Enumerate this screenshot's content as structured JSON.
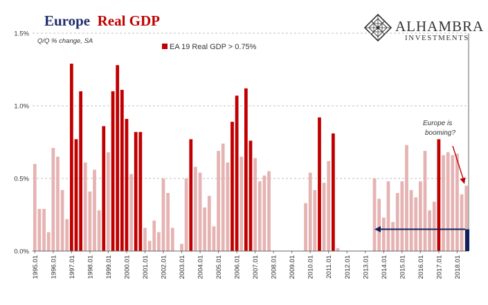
{
  "header": {
    "title_part1": "Europe",
    "title_part2": "Real GDP"
  },
  "logo": {
    "name": "ALHAMBRA",
    "sub": "INVESTMENTS",
    "icon": "diamond-lattice-icon"
  },
  "colors": {
    "highlight": "#c00000",
    "base": "#e6b3b3",
    "title_blue": "#1f2f6b",
    "arrow_navy": "#0d1f5c",
    "grid": "#bfbfbf"
  },
  "chart_data": {
    "type": "bar",
    "subtitle": "Q/Q % change, SA",
    "legend": "EA 19 Real GDP > 0.75%",
    "threshold": 0.75,
    "ylim": [
      0,
      1.5
    ],
    "y_ticks": [
      "0.0%",
      "0.5%",
      "1.0%",
      "1.5%"
    ],
    "y_tick_values": [
      0,
      0.5,
      1.0,
      1.5
    ],
    "x_tick_labels": [
      "1995.01",
      "1996.01",
      "1997.01",
      "1998.01",
      "1999.01",
      "2000.01",
      "2001.01",
      "2002.01",
      "2003.01",
      "2004.01",
      "2005.01",
      "2006.01",
      "2007.01",
      "2008.01",
      "2009.01",
      "2010.01",
      "2011.01",
      "2012.01",
      "2013.01",
      "2014.01",
      "2015.01",
      "2016.01",
      "2017.01",
      "2018.01"
    ],
    "start_year": 1995,
    "values": [
      0.6,
      0.29,
      0.29,
      0.13,
      0.71,
      0.65,
      0.42,
      0.22,
      1.29,
      0.77,
      1.1,
      0.61,
      0.41,
      0.56,
      0.28,
      0.86,
      0.68,
      1.1,
      1.28,
      1.11,
      0.91,
      0.53,
      0.82,
      0.82,
      0.16,
      0.07,
      0.21,
      0.13,
      0.5,
      0.4,
      0.16,
      0.0,
      0.05,
      0.5,
      0.77,
      0.58,
      0.54,
      0.3,
      0.38,
      0.17,
      0.69,
      0.74,
      0.61,
      0.89,
      1.07,
      0.65,
      1.12,
      0.76,
      0.64,
      0.48,
      0.52,
      0.55,
      0.0,
      0.0,
      0.0,
      0.0,
      0.0,
      0.0,
      0.0,
      0.33,
      0.54,
      0.42,
      0.92,
      0.47,
      0.62,
      0.81,
      0.02,
      0.0,
      0.0,
      0.0,
      0.0,
      0.0,
      0.0,
      0.0,
      0.5,
      0.36,
      0.23,
      0.48,
      0.2,
      0.4,
      0.48,
      0.73,
      0.42,
      0.37,
      0.48,
      0.69,
      0.28,
      0.34,
      0.77,
      0.66,
      0.68,
      0.66,
      0.67,
      0.39,
      0.45
    ],
    "annotation": {
      "line1": "Europe is",
      "line2": "booming?"
    },
    "reference_value": 0.15
  }
}
